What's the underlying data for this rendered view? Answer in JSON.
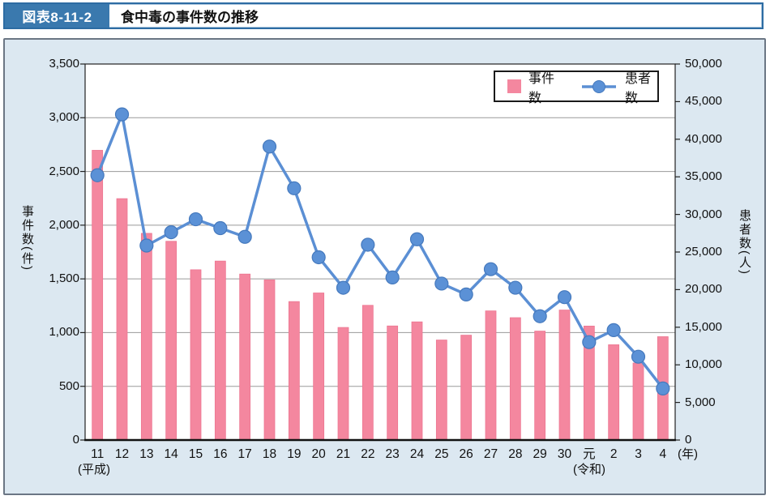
{
  "header": {
    "tag": "図表8-11-2",
    "title": "食中毒の事件数の推移"
  },
  "legend": {
    "bar_label": "事件数",
    "line_label": "患者数"
  },
  "axes": {
    "left_title": "事件数(件)",
    "right_title": "患者数(人)",
    "left_tick_labels": [
      "0",
      "500",
      "1,000",
      "1,500",
      "2,000",
      "2,500",
      "3,000",
      "3,500"
    ],
    "right_tick_labels": [
      "0",
      "5,000",
      "10,000",
      "15,000",
      "20,000",
      "25,000",
      "30,000",
      "35,000",
      "40,000",
      "45,000",
      "50,000"
    ],
    "era_heisei": "(平成)",
    "era_reiwa": "(令和)",
    "x_unit": "(年)"
  },
  "chart_data": {
    "type": "bar+line",
    "title": "食中毒の事件数の推移",
    "categories": [
      "11",
      "12",
      "13",
      "14",
      "15",
      "16",
      "17",
      "18",
      "19",
      "20",
      "21",
      "22",
      "23",
      "24",
      "25",
      "26",
      "27",
      "28",
      "29",
      "30",
      "元",
      "2",
      "3",
      "4"
    ],
    "series": [
      {
        "name": "事件数",
        "type": "bar",
        "axis": "left",
        "values": [
          2697,
          2247,
          1924,
          1850,
          1585,
          1666,
          1545,
          1491,
          1289,
          1369,
          1048,
          1254,
          1062,
          1100,
          931,
          976,
          1202,
          1139,
          1014,
          1210,
          1061,
          887,
          717,
          962
        ]
      },
      {
        "name": "患者数",
        "type": "line",
        "axis": "right",
        "values": [
          35214,
          43307,
          25862,
          27629,
          29355,
          28175,
          27019,
          39026,
          33477,
          24303,
          20249,
          25972,
          21616,
          26699,
          20802,
          19355,
          22718,
          20252,
          16464,
          19000,
          13018,
          14613,
          11080,
          6856
        ]
      }
    ],
    "left_axis": {
      "label": "事件数(件)",
      "min": 0,
      "max": 3500,
      "step": 500
    },
    "right_axis": {
      "label": "患者数(人)",
      "min": 0,
      "max": 50000,
      "step": 5000
    },
    "grid": true,
    "legend_position": "top-right",
    "colors": {
      "bar": "#f4879f",
      "bar_edge": "#ec7490",
      "line": "#5b8fd4",
      "marker": "#5b91d6",
      "marker_edge": "#4579bd",
      "gridline": "#9a9a9a",
      "axis": "#111111",
      "panel_bg": "#dce8f1",
      "header_blue": "#3a79ae",
      "header_border": "#2d6ca3"
    }
  }
}
